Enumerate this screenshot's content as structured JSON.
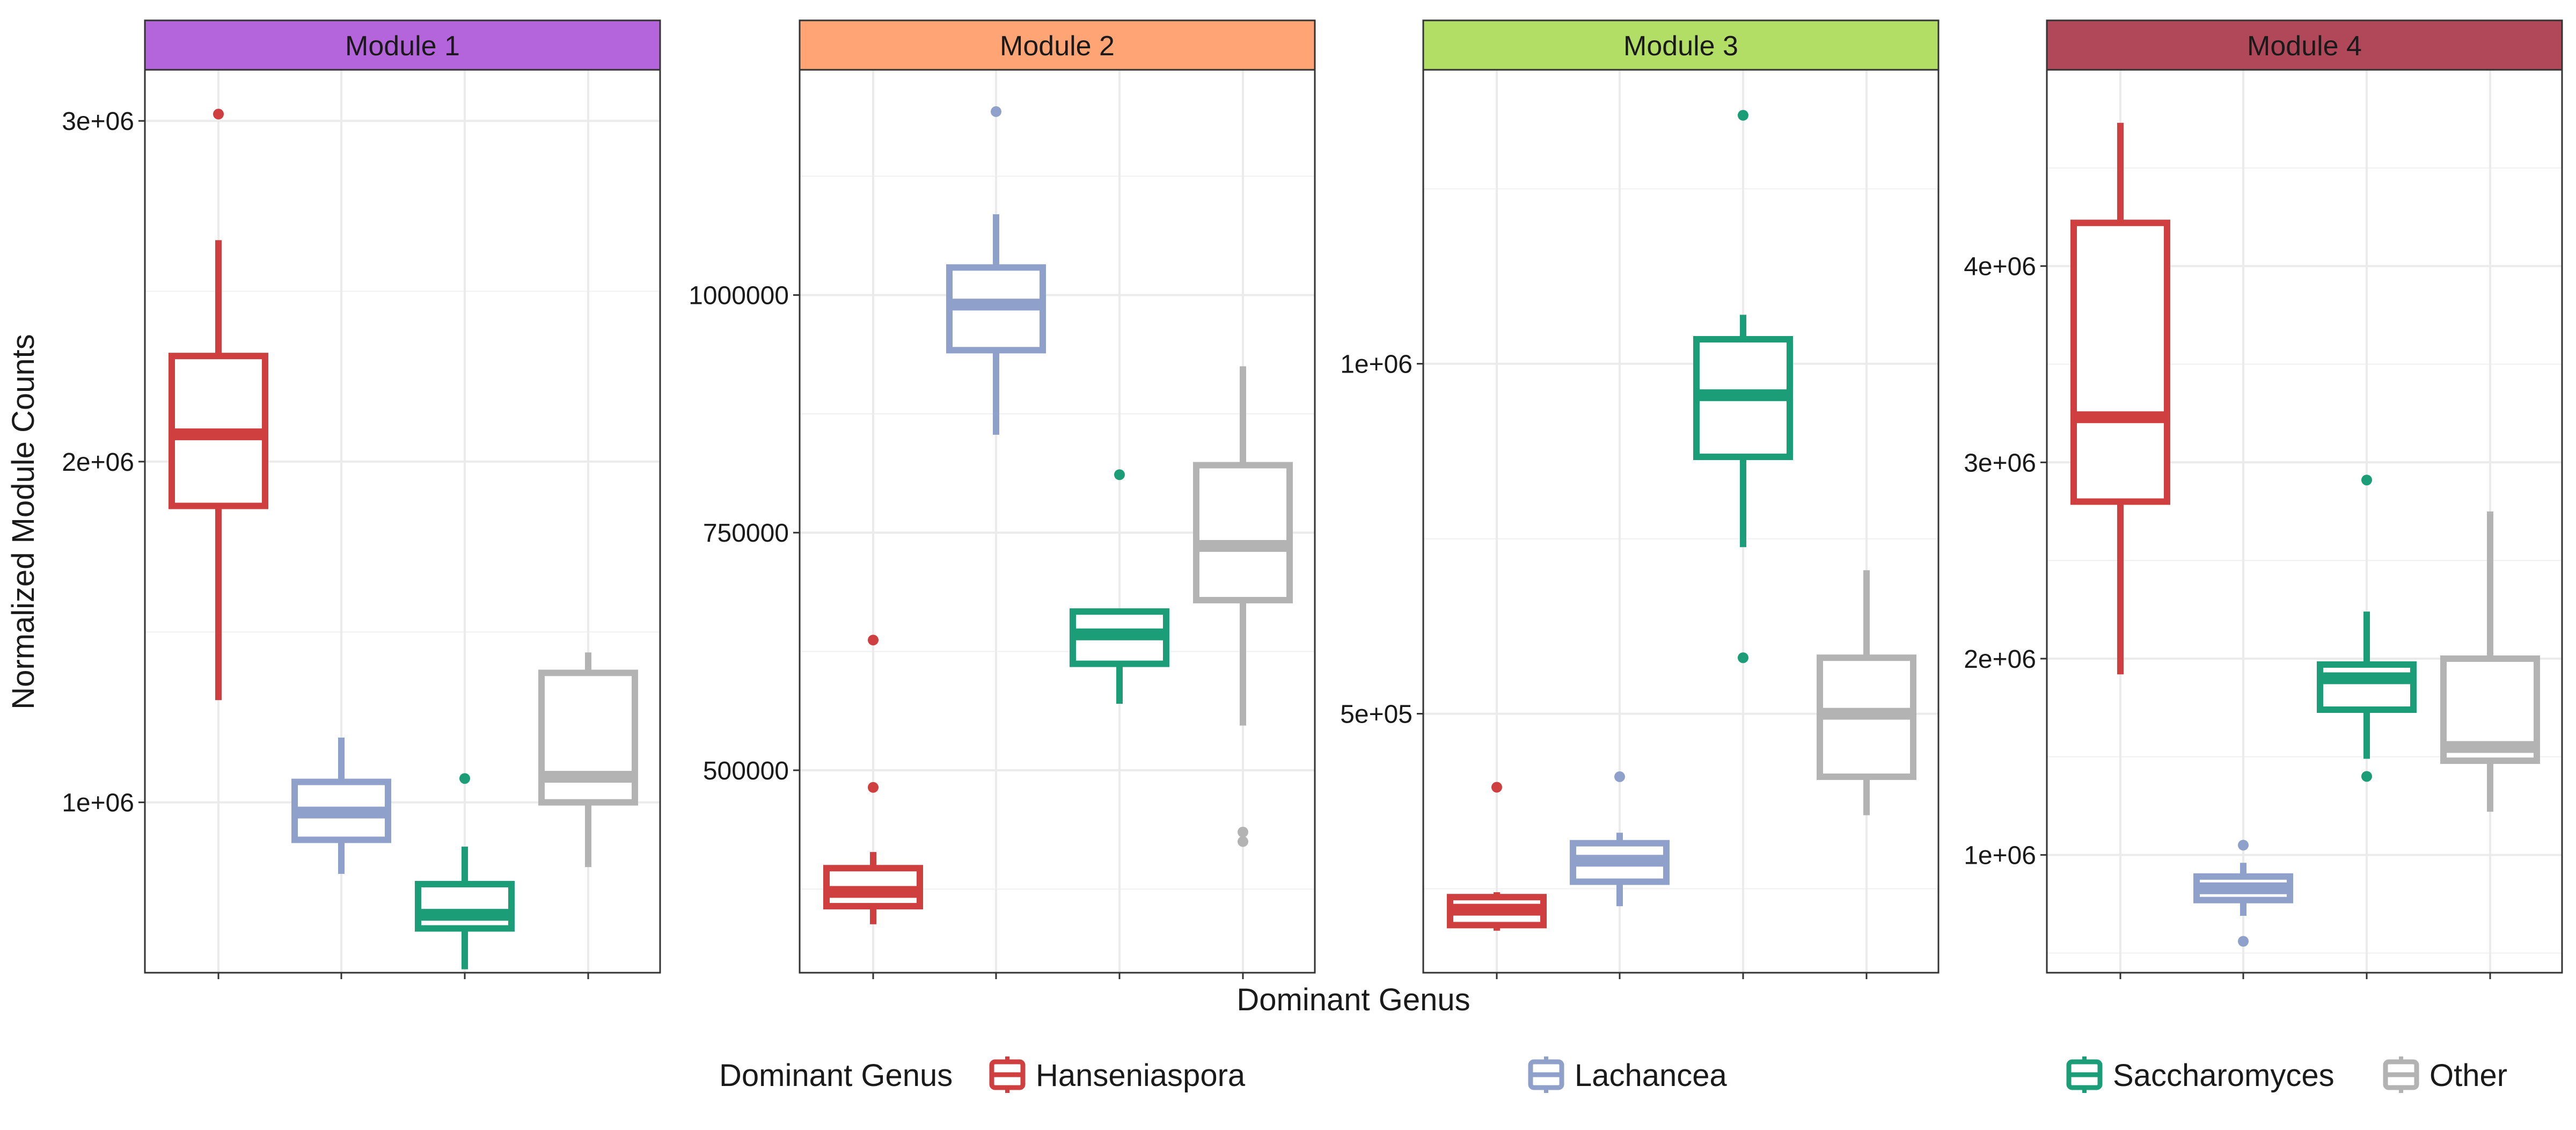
{
  "chart_data": {
    "type": "boxplot",
    "xlabel": "Dominant Genus",
    "ylabel": "Normalized Module Counts",
    "categories": [
      "Hanseniaspora",
      "Lachancea",
      "Saccharomyces",
      "Other"
    ],
    "colors": {
      "Hanseniaspora": "#d03f3f",
      "Lachancea": "#8fa0cb",
      "Saccharomyces": "#1b9e77",
      "Other": "#b3b3b3"
    },
    "legend": {
      "title": "Dominant Genus",
      "placement": "bottom",
      "entries": [
        "Hanseniaspora",
        "Lachancea",
        "Saccharomyces",
        "Other"
      ]
    },
    "grid": true,
    "facets": [
      {
        "title": "Module 1",
        "strip_color": "#b565db",
        "ylim": [
          500000,
          3150000
        ],
        "ticks": [
          1000000,
          2000000,
          3000000
        ],
        "tick_labels": [
          "1e+06",
          "2e+06",
          "3e+06"
        ],
        "minor_ticks": [
          500000,
          1500000,
          2500000
        ],
        "boxes": [
          {
            "genus": "Hanseniaspora",
            "lower": 1300000,
            "q1": 1870000,
            "median": 2080000,
            "q3": 2310000,
            "upper": 2650000,
            "outliers": [
              3020000
            ]
          },
          {
            "genus": "Lachancea",
            "lower": 790000,
            "q1": 890000,
            "median": 970000,
            "q3": 1060000,
            "upper": 1190000,
            "outliers": []
          },
          {
            "genus": "Saccharomyces",
            "lower": 510000,
            "q1": 630000,
            "median": 670000,
            "q3": 760000,
            "upper": 870000,
            "outliers": [
              1070000
            ]
          },
          {
            "genus": "Other",
            "lower": 810000,
            "q1": 1000000,
            "median": 1075000,
            "q3": 1380000,
            "upper": 1440000,
            "outliers": []
          }
        ]
      },
      {
        "title": "Module 2",
        "strip_color": "#ffa474",
        "ylim": [
          287000,
          1237000
        ],
        "ticks": [
          500000,
          750000,
          1000000
        ],
        "tick_labels": [
          "500000",
          "750000",
          "1000000"
        ],
        "minor_ticks": [
          375000,
          625000,
          875000,
          1125000
        ],
        "boxes": [
          {
            "genus": "Hanseniaspora",
            "lower": 338000,
            "q1": 357000,
            "median": 372000,
            "q3": 397000,
            "upper": 414000,
            "outliers": [
              482000,
              637000
            ]
          },
          {
            "genus": "Lachancea",
            "lower": 853000,
            "q1": 942000,
            "median": 990000,
            "q3": 1029000,
            "upper": 1085000,
            "outliers": [
              1193000
            ]
          },
          {
            "genus": "Saccharomyces",
            "lower": 570000,
            "q1": 612000,
            "median": 643000,
            "q3": 667000,
            "upper": 667000,
            "outliers": [
              811000
            ]
          },
          {
            "genus": "Other",
            "lower": 547000,
            "q1": 679000,
            "median": 736000,
            "q3": 821000,
            "upper": 925000,
            "outliers": [
              425000,
              435000
            ]
          }
        ]
      },
      {
        "title": "Module 3",
        "strip_color": "#b3de66",
        "ylim": [
          130000,
          1420000
        ],
        "ticks": [
          500000,
          1000000
        ],
        "tick_labels": [
          "5e+05",
          "1e+06"
        ],
        "minor_ticks": [
          250000,
          750000,
          1250000
        ],
        "boxes": [
          {
            "genus": "Hanseniaspora",
            "lower": 190000,
            "q1": 198000,
            "median": 220000,
            "q3": 238000,
            "upper": 245000,
            "outliers": [
              395000
            ]
          },
          {
            "genus": "Lachancea",
            "lower": 225000,
            "q1": 260000,
            "median": 290000,
            "q3": 315000,
            "upper": 330000,
            "outliers": [
              410000
            ]
          },
          {
            "genus": "Saccharomyces",
            "lower": 738000,
            "q1": 867000,
            "median": 955000,
            "q3": 1035000,
            "upper": 1070000,
            "outliers": [
              580000,
              1355000
            ]
          },
          {
            "genus": "Other",
            "lower": 355000,
            "q1": 410000,
            "median": 500000,
            "q3": 580000,
            "upper": 705000,
            "outliers": []
          }
        ]
      },
      {
        "title": "Module 4",
        "strip_color": "#b0485a",
        "ylim": [
          400000,
          5000000
        ],
        "ticks": [
          1000000,
          2000000,
          3000000,
          4000000
        ],
        "tick_labels": [
          "1e+06",
          "2e+06",
          "3e+06",
          "4e+06"
        ],
        "minor_ticks": [
          500000,
          1500000,
          2500000,
          3500000,
          4500000
        ],
        "boxes": [
          {
            "genus": "Hanseniaspora",
            "lower": 1920000,
            "q1": 2800000,
            "median": 3230000,
            "q3": 4220000,
            "upper": 4730000,
            "outliers": []
          },
          {
            "genus": "Lachancea",
            "lower": 690000,
            "q1": 770000,
            "median": 830000,
            "q3": 890000,
            "upper": 960000,
            "outliers": [
              560000,
              1050000
            ]
          },
          {
            "genus": "Saccharomyces",
            "lower": 1490000,
            "q1": 1740000,
            "median": 1900000,
            "q3": 1970000,
            "upper": 2240000,
            "outliers": [
              1400000,
              2910000
            ]
          },
          {
            "genus": "Other",
            "lower": 1220000,
            "q1": 1480000,
            "median": 1550000,
            "q3": 2000000,
            "upper": 2750000,
            "outliers": []
          }
        ]
      }
    ]
  }
}
